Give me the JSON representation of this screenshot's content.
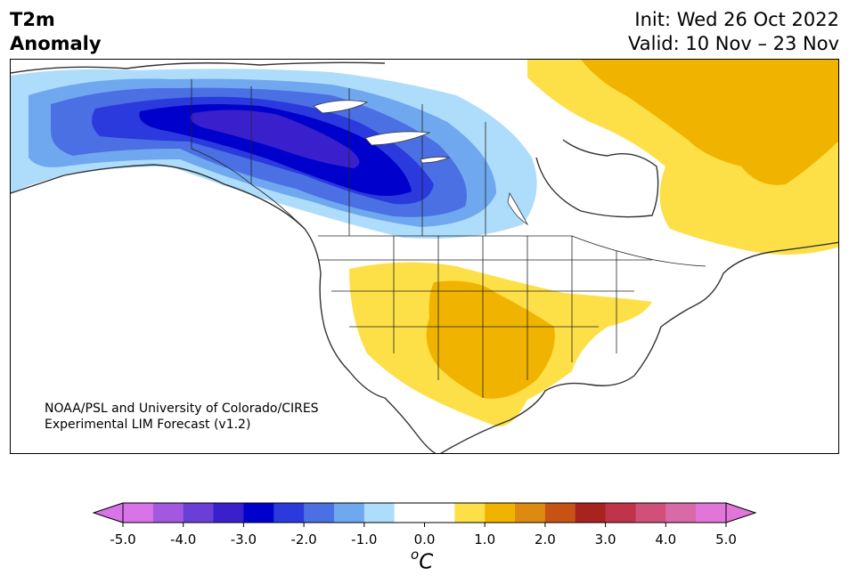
{
  "header": {
    "variable": "T2m",
    "variable_sub": "Anomaly",
    "init": "Init: Wed 26 Oct 2022",
    "valid": "Valid: 10 Nov – 23 Nov"
  },
  "credit": {
    "line1": "NOAA/PSL and University of Colorado/CIRES",
    "line2": "Experimental LIM Forecast (v1.2)"
  },
  "colorbar": {
    "ticks": [
      "-5.0",
      "-4.0",
      "-3.0",
      "-2.0",
      "-1.0",
      "0.0",
      "1.0",
      "2.0",
      "3.0",
      "4.0",
      "5.0"
    ],
    "unit_base": "C",
    "unit_sup": "o",
    "colors": [
      "#d874e8",
      "#a259e0",
      "#6a3fd8",
      "#3a20cc",
      "#0000cc",
      "#2a3adc",
      "#4a70e4",
      "#70a8ef",
      "#aedcfb",
      "#ffffff",
      "#ffffff",
      "#fde047",
      "#f0b400",
      "#dd8a10",
      "#c65214",
      "#a82220",
      "#c0344a",
      "#d0507a",
      "#d86aa8",
      "#e276d8"
    ]
  },
  "map_regions": {
    "cold_anomaly": "Alaska / western Canada",
    "warm_anomaly": [
      "Southern US Plains",
      "Eastern Canada / Greenland"
    ]
  }
}
